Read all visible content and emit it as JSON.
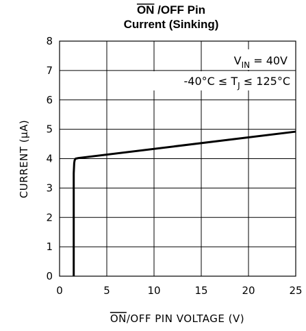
{
  "chart_data": {
    "type": "line",
    "title": {
      "overlined": "ON",
      "line1_rest": " /OFF Pin",
      "line2": "Current (Sinking)"
    },
    "xlabel": {
      "overlined": "ON",
      "rest": "/OFF PIN VOLTAGE (V)"
    },
    "ylabel": "CURRENT (μA)",
    "xlim": [
      0,
      25
    ],
    "ylim": [
      0,
      8
    ],
    "x_ticks": [
      "0",
      "5",
      "10",
      "15",
      "20",
      "25"
    ],
    "y_ticks": [
      "0",
      "1",
      "2",
      "3",
      "4",
      "5",
      "6",
      "7",
      "8"
    ],
    "grid": true,
    "annotations": {
      "vin": {
        "main": "V",
        "sub": "IN",
        "rest": " = 40V"
      },
      "tj": {
        "left": "-40°C ≤ T",
        "sub": "J",
        "right": " ≤ 125°C"
      }
    },
    "series": [
      {
        "x": [
          1.5,
          1.5,
          1.55,
          1.6,
          1.7,
          2.0,
          25
        ],
        "y": [
          0,
          3.5,
          3.85,
          3.95,
          4.0,
          4.02,
          4.92
        ]
      }
    ]
  }
}
